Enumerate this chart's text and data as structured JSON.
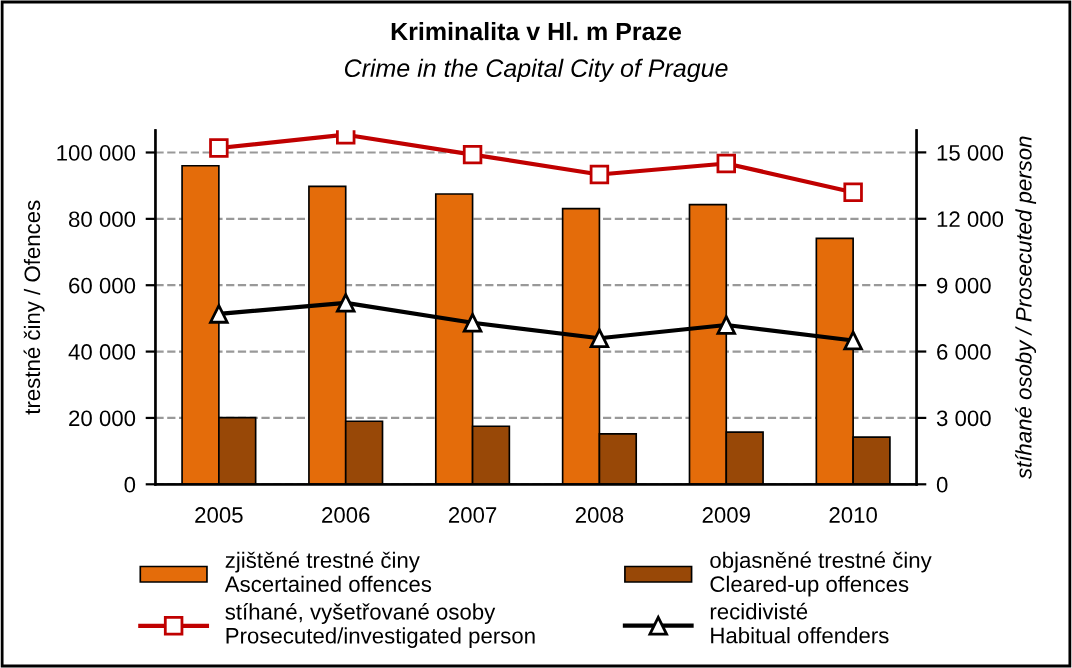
{
  "chart_data": {
    "type": "bar",
    "title": "Kriminalita v Hl. m Praze",
    "subtitle": "Crime in the Capital City of Prague",
    "ylabel": "trestné činy / Ofences",
    "y2label": "stíhané osoby / Prosecuted person",
    "categories": [
      "2005",
      "2006",
      "2007",
      "2008",
      "2009",
      "2010"
    ],
    "series": [
      {
        "name": "zjištěné trestné činy\nAscertained offences",
        "color": "#e46c0a",
        "values": [
          96000,
          89800,
          87500,
          83100,
          84300,
          74100
        ]
      },
      {
        "name": "objasněné trestné činy\nCleared-up offences",
        "color": "#984807",
        "values": [
          20100,
          19000,
          17500,
          15200,
          15700,
          14200
        ]
      },
      {
        "name": "stíhané, vyšetřované osoby\nProsecuted/investigated person",
        "type": "line",
        "axis": "y2",
        "color": "#c00000",
        "marker": "square",
        "values": [
          15200,
          15800,
          14900,
          14000,
          14500,
          13200
        ]
      },
      {
        "name": "recidivisté\nHabitual offenders",
        "type": "line",
        "axis": "y2",
        "color": "#000000",
        "marker": "triangle",
        "values": [
          7700,
          8200,
          7300,
          6600,
          7200,
          6500
        ]
      }
    ],
    "ylim": [
      0,
      106700
    ],
    "yticks": [
      {
        "value": 0,
        "label": "0"
      },
      {
        "value": 20000,
        "label": "20 000"
      },
      {
        "value": 40000,
        "label": "40 000"
      },
      {
        "value": 60000,
        "label": "60 000"
      },
      {
        "value": 80000,
        "label": "80 000"
      },
      {
        "value": 100000,
        "label": "100 000"
      }
    ],
    "y2lim": [
      0,
      16000
    ],
    "y2ticks": [
      {
        "value": 0,
        "label": "0"
      },
      {
        "value": 3000,
        "label": "3 000"
      },
      {
        "value": 6000,
        "label": "6 000"
      },
      {
        "value": 9000,
        "label": "9 000"
      },
      {
        "value": 12000,
        "label": "12 000"
      },
      {
        "value": 15000,
        "label": "15 000"
      }
    ],
    "grid": "y",
    "legend": "bottom",
    "line_style": "solid"
  }
}
